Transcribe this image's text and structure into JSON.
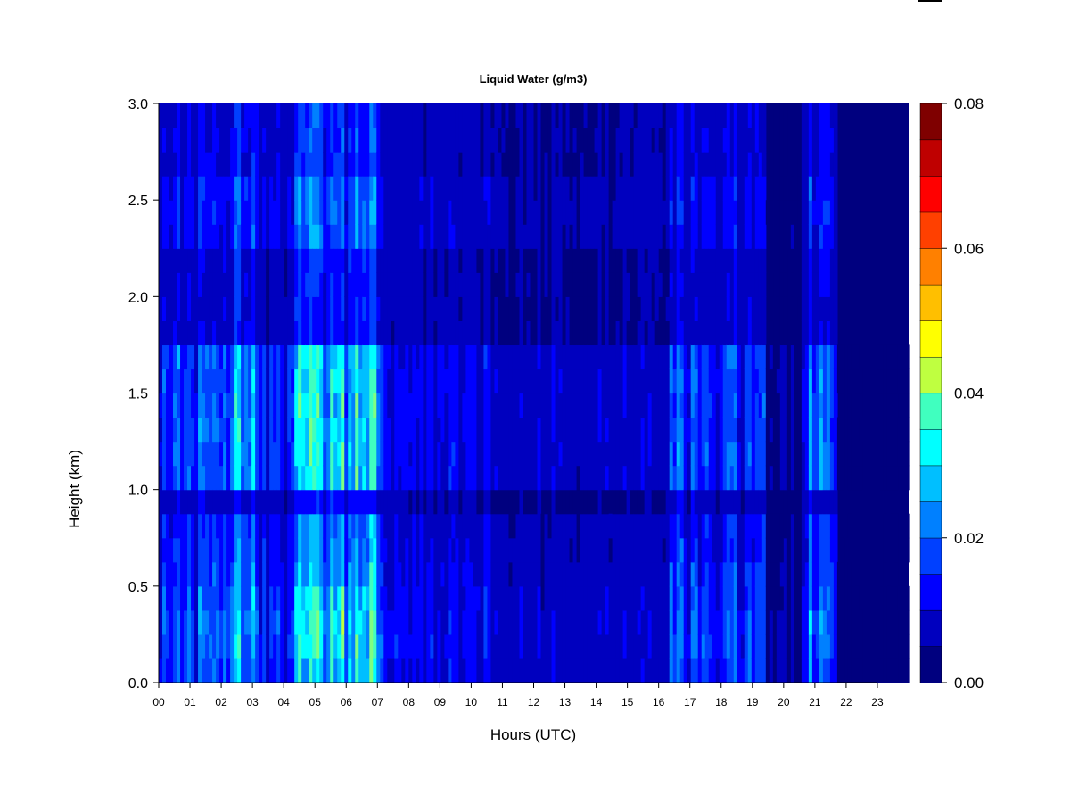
{
  "chart_data": {
    "type": "heatmap",
    "title": "Liquid Water (g/m3)",
    "xlabel": "Hours (UTC)",
    "ylabel": "Height (km)",
    "x_ticks": [
      "00",
      "01",
      "02",
      "03",
      "04",
      "05",
      "06",
      "07",
      "08",
      "09",
      "10",
      "11",
      "12",
      "13",
      "14",
      "15",
      "16",
      "17",
      "18",
      "19",
      "20",
      "21",
      "22",
      "23"
    ],
    "y_ticks": [
      "0.0",
      "0.5",
      "1.0",
      "1.5",
      "2.0",
      "2.5",
      "3.0"
    ],
    "xlim": [
      0,
      24
    ],
    "ylim": [
      0,
      3.0
    ],
    "colorbar": {
      "ticks": [
        "0.00",
        "0.02",
        "0.04",
        "0.06",
        "0.08"
      ],
      "range": [
        0,
        0.08
      ],
      "levels": 16,
      "colors": [
        "#00007F",
        "#0000BF",
        "#0000FF",
        "#0040FF",
        "#0080FF",
        "#00BFFF",
        "#00FFFF",
        "#40FFBF",
        "#80FF80",
        "#BFFF40",
        "#FFFF00",
        "#FFBF00",
        "#FF8000",
        "#FF4000",
        "#FF0000",
        "#BF0000",
        "#7F0000"
      ]
    },
    "approx_intensity_bands": [
      {
        "hours": [
          0.0,
          1.9
        ],
        "max_value": 0.025
      },
      {
        "hours": [
          1.9,
          3.2
        ],
        "max_value": 0.04
      },
      {
        "hours": [
          3.2,
          4.3
        ],
        "max_value": 0.02
      },
      {
        "hours": [
          4.3,
          7.2
        ],
        "max_value": 0.045
      },
      {
        "hours": [
          7.2,
          10.7
        ],
        "max_value": 0.015
      },
      {
        "hours": [
          10.7,
          16.4
        ],
        "max_value": 0.01
      },
      {
        "hours": [
          16.4,
          19.4
        ],
        "max_value": 0.025
      },
      {
        "hours": [
          19.4,
          20.6
        ],
        "max_value": 0.005
      },
      {
        "hours": [
          20.6,
          21.7
        ],
        "max_value": 0.03
      },
      {
        "hours": [
          21.7,
          24.0
        ],
        "max_value": 0.002
      }
    ]
  }
}
